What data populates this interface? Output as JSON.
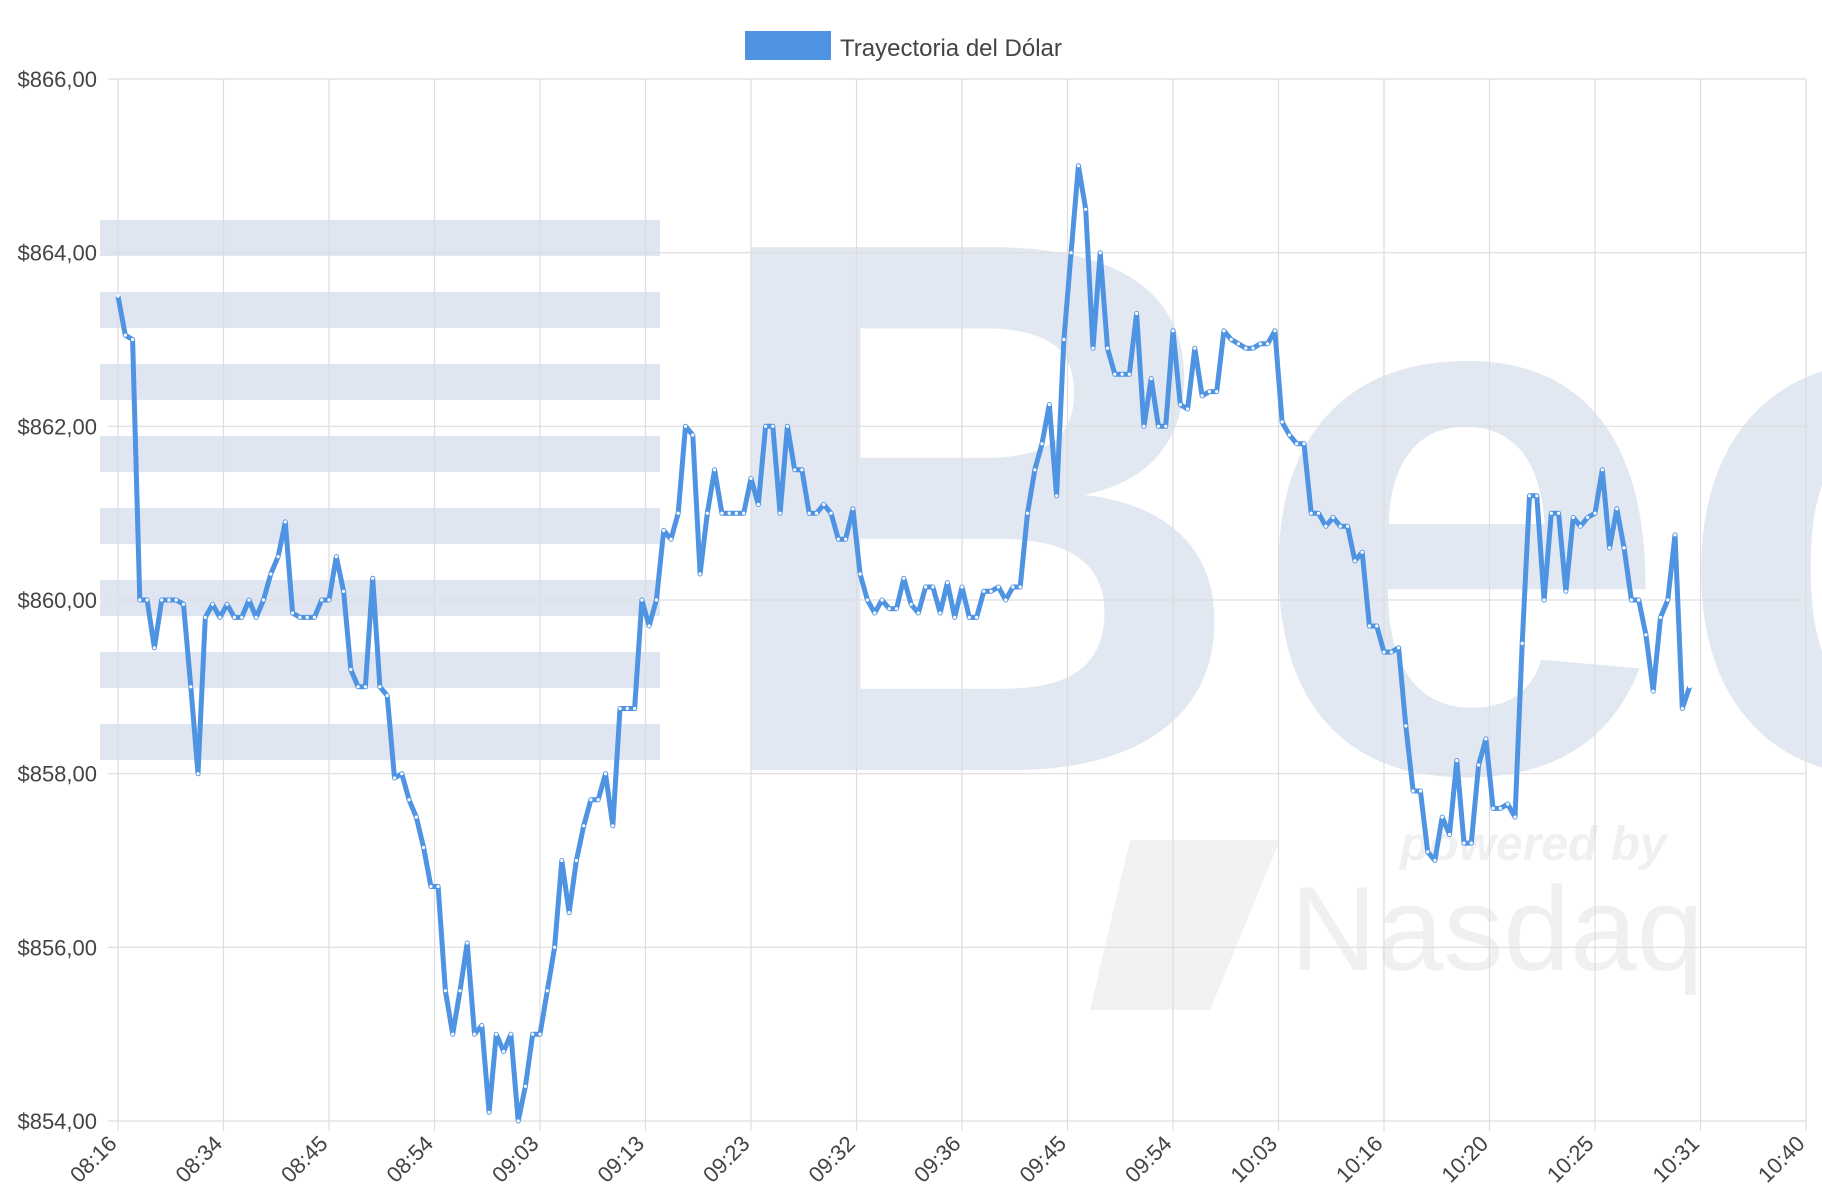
{
  "chart_data": {
    "type": "line",
    "title": "",
    "xlabel": "",
    "ylabel": "",
    "series": [
      {
        "name": "Trayectoria del Dólar",
        "color": "#4f93e3"
      }
    ],
    "legend_position": "top-center",
    "ylim": [
      854,
      866
    ],
    "y_ticks": [
      {
        "value": 854,
        "label": "$854,00"
      },
      {
        "value": 856,
        "label": "$856,00"
      },
      {
        "value": 858,
        "label": "$858,00"
      },
      {
        "value": 860,
        "label": "$860,00"
      },
      {
        "value": 862,
        "label": "$862,00"
      },
      {
        "value": 864,
        "label": "$864,00"
      },
      {
        "value": 866,
        "label": "$866,00"
      }
    ],
    "x_tick_labels": [
      "08:16",
      "08:34",
      "08:45",
      "08:54",
      "09:03",
      "09:13",
      "09:23",
      "09:32",
      "09:36",
      "09:45",
      "09:54",
      "10:03",
      "10:16",
      "10:20",
      "10:25",
      "10:31",
      "10:40"
    ],
    "points_per_tick": 14.5,
    "values": [
      863.5,
      863.05,
      863.0,
      860.0,
      860.0,
      859.45,
      860.0,
      860.0,
      860.0,
      859.95,
      859.0,
      858.0,
      859.8,
      859.95,
      859.8,
      859.95,
      859.8,
      859.8,
      860.0,
      859.8,
      860.0,
      860.3,
      860.5,
      860.9,
      859.85,
      859.8,
      859.8,
      859.8,
      860.0,
      860.0,
      860.5,
      860.1,
      859.2,
      859.0,
      859.0,
      860.25,
      859.0,
      858.9,
      857.95,
      858.0,
      857.7,
      857.5,
      857.15,
      856.7,
      856.7,
      855.5,
      855.0,
      855.5,
      856.05,
      855.0,
      855.1,
      854.1,
      855.0,
      854.8,
      855.0,
      854.0,
      854.4,
      855.0,
      855.0,
      855.5,
      856.0,
      857.0,
      856.4,
      857.0,
      857.4,
      857.7,
      857.7,
      858.0,
      857.4,
      858.75,
      858.75,
      858.75,
      860.0,
      859.7,
      860.0,
      860.8,
      860.7,
      861.0,
      862.0,
      861.9,
      860.3,
      861.0,
      861.5,
      861.0,
      861.0,
      861.0,
      861.0,
      861.4,
      861.1,
      862.0,
      862.0,
      861.0,
      862.0,
      861.5,
      861.5,
      861.0,
      861.0,
      861.1,
      861.0,
      860.7,
      860.7,
      861.05,
      860.3,
      860.0,
      859.85,
      860.0,
      859.9,
      859.9,
      860.25,
      859.95,
      859.85,
      860.15,
      860.15,
      859.85,
      860.2,
      859.8,
      860.15,
      859.8,
      859.8,
      860.1,
      860.1,
      860.15,
      860.0,
      860.15,
      860.15,
      861.0,
      861.5,
      861.8,
      862.25,
      861.2,
      863.0,
      864.0,
      865.0,
      864.5,
      862.9,
      864.0,
      862.9,
      862.6,
      862.6,
      862.6,
      863.3,
      862.0,
      862.55,
      862.0,
      862.0,
      863.1,
      862.25,
      862.2,
      862.9,
      862.35,
      862.4,
      862.4,
      863.1,
      863.0,
      862.95,
      862.9,
      862.9,
      862.95,
      862.95,
      863.1,
      862.05,
      861.9,
      861.8,
      861.8,
      861.0,
      861.0,
      860.85,
      860.95,
      860.85,
      860.85,
      860.45,
      860.55,
      859.7,
      859.7,
      859.4,
      859.4,
      859.45,
      858.55,
      857.8,
      857.8,
      857.1,
      857.0,
      857.5,
      857.3,
      858.15,
      857.2,
      857.2,
      858.1,
      858.4,
      857.6,
      857.6,
      857.65,
      857.5,
      859.5,
      861.2,
      861.2,
      860.0,
      861.0,
      861.0,
      860.1,
      860.95,
      860.85,
      860.95,
      861.0,
      861.5,
      860.6,
      861.05,
      860.6,
      860.0,
      860.0,
      859.6,
      858.95,
      859.8,
      860.0,
      860.75,
      858.75,
      859.0
    ]
  },
  "watermark": {
    "logo_text": "Bec",
    "powered_text": "powered by",
    "partner_text": "Nasdaq"
  }
}
